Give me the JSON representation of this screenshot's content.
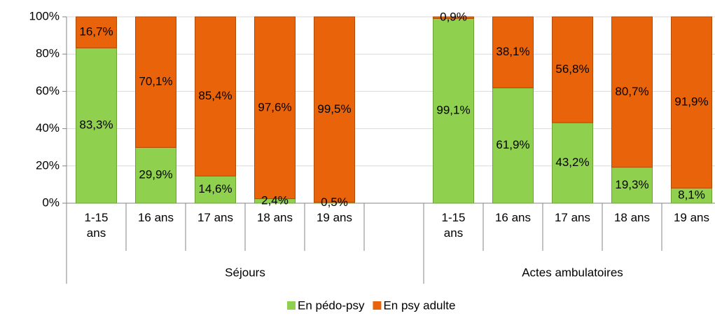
{
  "chart_data": {
    "type": "stacked_bar",
    "groups": [
      {
        "label": "Séjours",
        "categories": [
          "1-15 ans",
          "16 ans",
          "17 ans",
          "18 ans",
          "19 ans",
          null
        ]
      },
      {
        "label": "Actes ambulatoires",
        "categories": [
          "1-15 ans",
          "16 ans",
          "17 ans",
          "18 ans",
          "19 ans"
        ]
      }
    ],
    "series": [
      {
        "name": "En pédo-psy",
        "color": "#8fd14f",
        "values": [
          83.3,
          29.9,
          14.6,
          2.4,
          0.5,
          null,
          99.1,
          61.9,
          43.2,
          19.3,
          8.1
        ],
        "value_labels": [
          "83,3%",
          "29,9%",
          "14,6%",
          "2,4%",
          "0,5%",
          null,
          "99,1%",
          "61,9%",
          "43,2%",
          "19,3%",
          "8,1%"
        ]
      },
      {
        "name": "En psy adulte",
        "color": "#e8630a",
        "values": [
          16.7,
          70.1,
          85.4,
          97.6,
          99.5,
          null,
          0.9,
          38.1,
          56.8,
          80.7,
          91.9
        ],
        "value_labels": [
          "16,7%",
          "70,1%",
          "85,4%",
          "97,6%",
          "99,5%",
          null,
          "0,9%",
          "38,1%",
          "56,8%",
          "80,7%",
          "91,9%"
        ]
      }
    ],
    "ylim": [
      0,
      100
    ],
    "yticks": [
      {
        "value": 0,
        "label": "0%"
      },
      {
        "value": 20,
        "label": "20%"
      },
      {
        "value": 40,
        "label": "40%"
      },
      {
        "value": 60,
        "label": "60%"
      },
      {
        "value": 80,
        "label": "80%"
      },
      {
        "value": 100,
        "label": "100%"
      }
    ],
    "grid": true,
    "legend": "bottom"
  }
}
